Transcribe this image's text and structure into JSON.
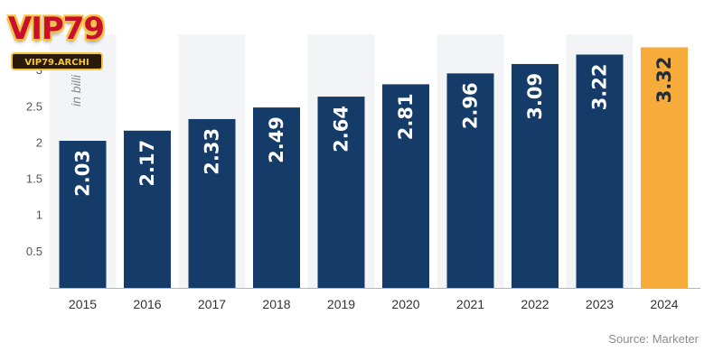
{
  "logo": {
    "main_text": "VIP79",
    "sub_text": "VIP79.ARCHI"
  },
  "source": "Source: Marketer",
  "colors": {
    "bar": "#153c69",
    "highlight": "#f6ab3a",
    "band": "#f3f4f6",
    "bar_text": "#ffffff",
    "highlight_text": "#1f2d3d"
  },
  "chart_data": {
    "type": "bar",
    "categories": [
      "2015",
      "2016",
      "2017",
      "2018",
      "2019",
      "2020",
      "2021",
      "2022",
      "2023",
      "2024"
    ],
    "values": [
      2.03,
      2.17,
      2.33,
      2.49,
      2.64,
      2.81,
      2.96,
      3.09,
      3.22,
      3.32
    ],
    "value_labels": [
      "2.03",
      "2.17",
      "2.33",
      "2.49",
      "2.64",
      "2.81",
      "2.96",
      "3.09",
      "3.22",
      "3.32"
    ],
    "highlight_index": 9,
    "title": "",
    "xlabel": "",
    "ylabel": "in billi",
    "ylim": [
      0,
      3.5
    ],
    "yticks": [
      0.5,
      1,
      1.5,
      2,
      2.5,
      3
    ],
    "ytick_labels": [
      "0.5",
      "1",
      "1.5",
      "2",
      "2.5",
      "3"
    ],
    "grid": false,
    "legend": "none"
  }
}
